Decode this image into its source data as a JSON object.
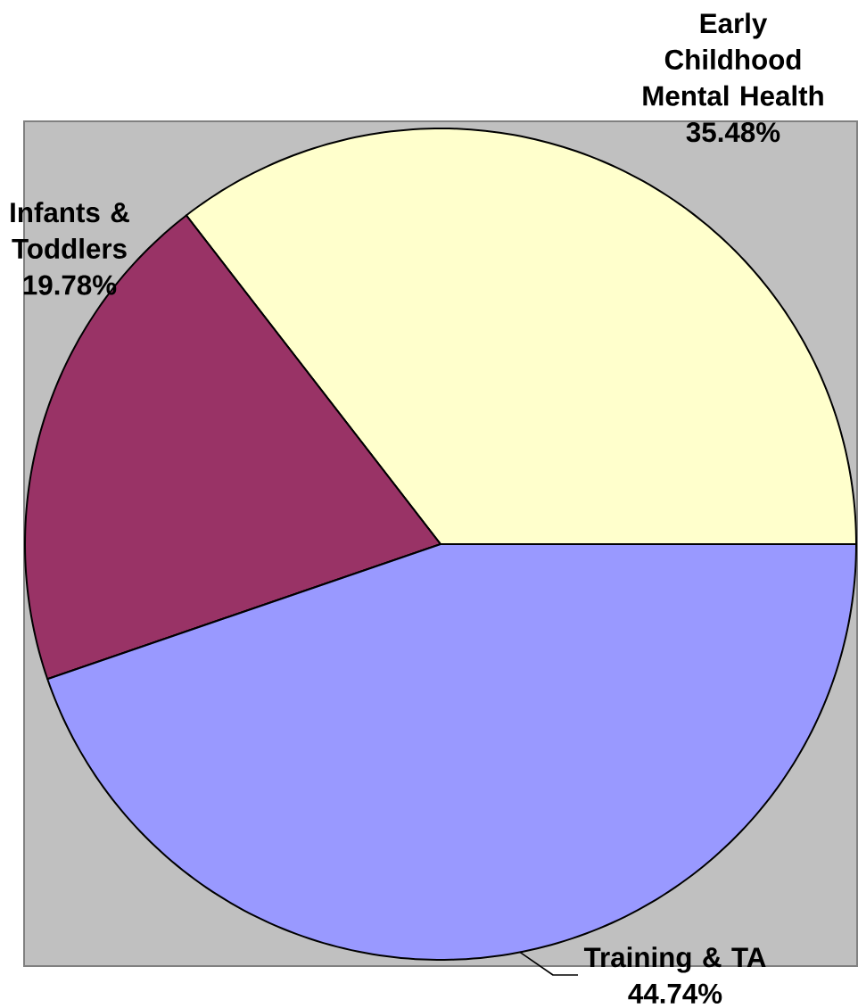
{
  "chart_data": {
    "type": "pie",
    "categories": [
      "Early Childhood Mental Health",
      "Infants & Toddlers",
      "Training & TA"
    ],
    "values": [
      35.48,
      19.78,
      44.74
    ],
    "colors": [
      "#ffffcc",
      "#993366",
      "#9999ff"
    ],
    "value_labels": [
      "35.48%",
      "19.78%",
      "44.74%"
    ]
  }
}
